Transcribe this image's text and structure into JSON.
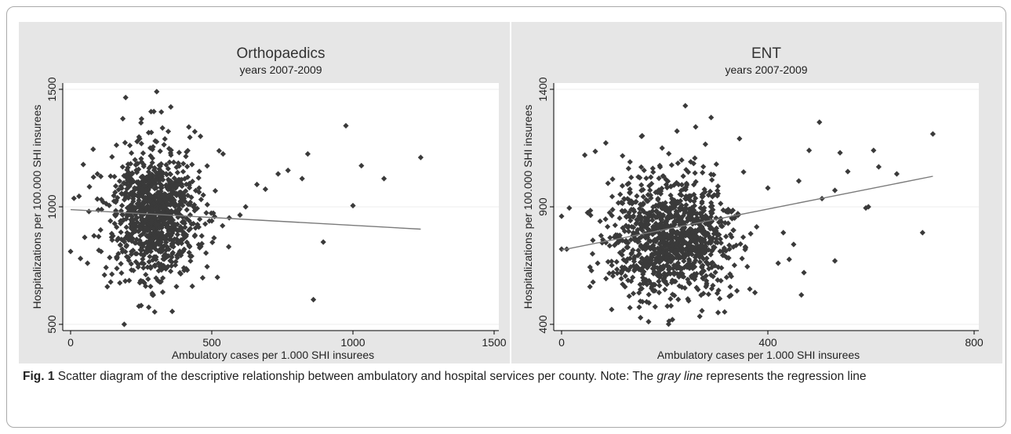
{
  "caption": {
    "label": "Fig. 1",
    "part1": " Scatter diagram of the descriptive relationship between ambulatory and hospital services per county. Note: The ",
    "emph": "gray line",
    "part2": " represents the regression line"
  },
  "colors": {
    "points": "#3a3a3a",
    "regression": "#7a7a7a",
    "panel_bg": "#e6e6e6",
    "plot_bg": "#ffffff"
  },
  "chart_data": [
    {
      "type": "scatter",
      "title": "Orthopaedics",
      "subtitle": "years 2007-2009",
      "xlabel": "Ambulatory cases per 1.000 SHI insurees",
      "ylabel": "Hospitalizations per 100.000 SHI insurees",
      "xlim": [
        0,
        1500
      ],
      "ylim": [
        500,
        1500
      ],
      "xticks": [
        0,
        500,
        1000,
        1500
      ],
      "yticks": [
        500,
        1000,
        1500
      ],
      "grid": "horizontal",
      "cluster": {
        "x_center": 300,
        "x_spread": 75,
        "y_center": 970,
        "y_spread": 140,
        "n": 1000
      },
      "points": [
        [
          305,
          1490
        ],
        [
          195,
          1465
        ],
        [
          355,
          1425
        ],
        [
          185,
          1375
        ],
        [
          285,
          1405
        ],
        [
          975,
          1345
        ],
        [
          1240,
          1210
        ],
        [
          840,
          1225
        ],
        [
          1030,
          1175
        ],
        [
          1110,
          1120
        ],
        [
          1000,
          1005
        ],
        [
          895,
          850
        ],
        [
          820,
          1120
        ],
        [
          770,
          1155
        ],
        [
          735,
          1140
        ],
        [
          690,
          1075
        ],
        [
          660,
          1095
        ],
        [
          620,
          1000
        ],
        [
          600,
          965
        ],
        [
          540,
          1225
        ],
        [
          440,
          1320
        ],
        [
          460,
          1300
        ],
        [
          45,
          1180
        ],
        [
          80,
          1245
        ],
        [
          95,
          1140
        ],
        [
          30,
          1045
        ],
        [
          65,
          980
        ],
        [
          50,
          870
        ],
        [
          35,
          780
        ],
        [
          0,
          810
        ],
        [
          60,
          760
        ],
        [
          120,
          710
        ],
        [
          100,
          815
        ],
        [
          130,
          660
        ],
        [
          860,
          605
        ],
        [
          250,
          580
        ],
        [
          360,
          555
        ],
        [
          190,
          500
        ],
        [
          290,
          625
        ],
        [
          520,
          700
        ],
        [
          560,
          830
        ],
        [
          500,
          940
        ],
        [
          470,
          1050
        ],
        [
          430,
          1180
        ],
        [
          400,
          890
        ]
      ],
      "regression": {
        "x1": 0,
        "y1": 988,
        "x2": 1240,
        "y2": 905
      }
    },
    {
      "type": "scatter",
      "title": "ENT",
      "subtitle": "years 2007-2009",
      "xlabel": "Ambulatory cases per 1.000 SHI insurees",
      "ylabel": "Hospitalizations per 100.000 SHI insurees",
      "xlim": [
        0,
        800
      ],
      "ylim": [
        400,
        1400
      ],
      "xticks": [
        0,
        400,
        800
      ],
      "yticks": [
        400,
        900,
        1400
      ],
      "grid": "horizontal",
      "cluster": {
        "x_center": 215,
        "x_spread": 60,
        "y_center": 780,
        "y_spread": 130,
        "n": 1100
      },
      "points": [
        [
          240,
          1330
        ],
        [
          500,
          1260
        ],
        [
          720,
          1210
        ],
        [
          155,
          1200
        ],
        [
          605,
          1140
        ],
        [
          540,
          1130
        ],
        [
          480,
          1140
        ],
        [
          700,
          790
        ],
        [
          650,
          1040
        ],
        [
          615,
          1070
        ],
        [
          590,
          895
        ],
        [
          595,
          900
        ],
        [
          530,
          970
        ],
        [
          505,
          935
        ],
        [
          460,
          1010
        ],
        [
          400,
          980
        ],
        [
          0,
          860
        ],
        [
          15,
          895
        ],
        [
          0,
          720
        ],
        [
          10,
          720
        ],
        [
          55,
          560
        ],
        [
          60,
          700
        ],
        [
          70,
          660
        ],
        [
          100,
          620
        ],
        [
          130,
          630
        ],
        [
          105,
          780
        ],
        [
          125,
          820
        ],
        [
          155,
          820
        ],
        [
          150,
          860
        ],
        [
          345,
          1190
        ],
        [
          290,
          1280
        ],
        [
          260,
          1240
        ],
        [
          195,
          1150
        ],
        [
          365,
          550
        ],
        [
          375,
          535
        ],
        [
          465,
          525
        ],
        [
          470,
          620
        ],
        [
          450,
          740
        ],
        [
          420,
          660
        ],
        [
          430,
          790
        ],
        [
          215,
          420
        ],
        [
          280,
          560
        ],
        [
          320,
          600
        ],
        [
          350,
          680
        ],
        [
          530,
          670
        ],
        [
          555,
          1050
        ],
        [
          175,
          560
        ],
        [
          90,
          1000
        ],
        [
          80,
          760
        ],
        [
          45,
          1120
        ]
      ],
      "regression": {
        "x1": 0,
        "y1": 716,
        "x2": 720,
        "y2": 1030
      }
    }
  ]
}
